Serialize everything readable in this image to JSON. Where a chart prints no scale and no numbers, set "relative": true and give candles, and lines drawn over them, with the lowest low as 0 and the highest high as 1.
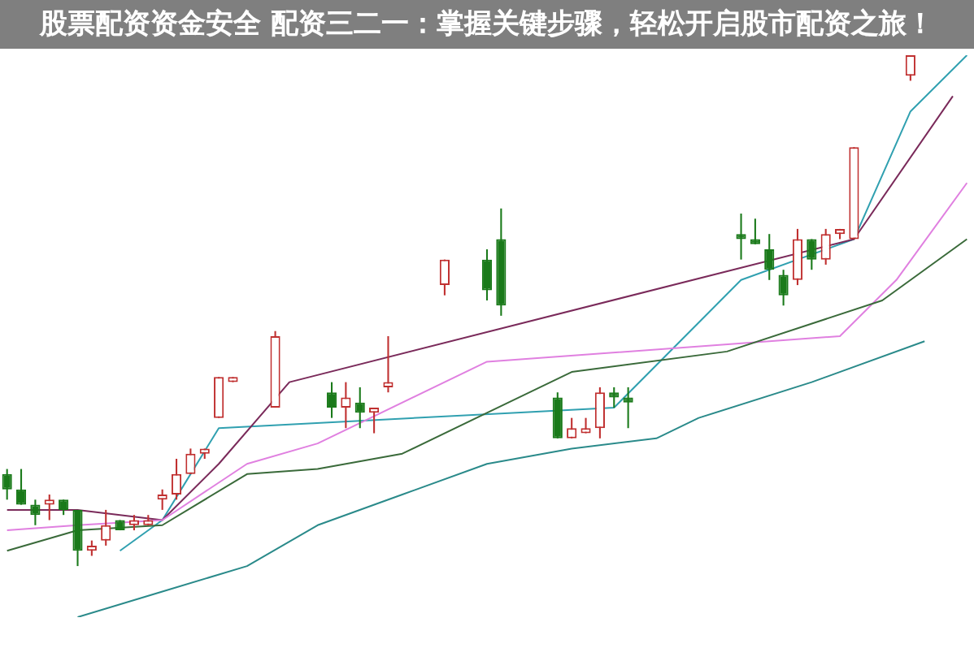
{
  "chart_data": {
    "type": "candlestick",
    "title": "股票配资资金安全 配资三二一：掌握关键步骤，轻松开启股市配资之旅！",
    "relative": true,
    "legend": false,
    "categories": [
      null,
      null,
      null,
      null,
      null,
      null,
      null,
      null,
      null,
      null,
      null,
      null,
      null,
      null,
      null,
      null,
      null,
      null,
      null,
      null,
      null,
      null,
      null,
      null,
      null,
      null,
      null,
      null,
      null,
      null,
      null,
      null,
      null,
      null,
      null,
      null,
      null,
      null,
      null,
      null,
      null,
      null,
      null,
      null,
      null,
      null,
      null,
      null,
      null,
      null,
      null,
      null,
      null,
      null,
      null,
      null,
      null,
      null,
      null,
      null,
      null,
      null,
      null,
      null,
      null,
      null,
      null,
      null,
      null
    ],
    "colors": [
      "#1a7a1a",
      "#1a7a1a",
      "#1a7a1a",
      "#c03030",
      "#1a7a1a",
      "#1a7a1a",
      "#c03030",
      "#c03030",
      "#1a7a1a",
      "#c03030",
      "#c03030",
      "#c03030",
      "#c03030",
      "#c03030",
      "#c03030",
      "#c03030",
      "#c03030",
      null,
      null,
      "#c03030",
      null,
      null,
      null,
      "#1a7a1a",
      "#c03030",
      "#1a7a1a",
      "#c03030",
      "#c03030",
      null,
      null,
      null,
      "#c03030",
      null,
      null,
      "#1a7a1a",
      "#1a7a1a",
      null,
      null,
      null,
      "#1a7a1a",
      "#c03030",
      "#c03030",
      "#c03030",
      "#1a7a1a",
      "#1a7a1a",
      null,
      null,
      null,
      null,
      null,
      null,
      null,
      "#1a7a1a",
      "#1a7a1a",
      "#1a7a1a",
      "#1a7a1a",
      "#c03030",
      "#1a7a1a",
      "#c03030",
      "#c03030",
      "#c03030",
      null,
      null,
      null,
      "#c03030",
      null,
      null,
      null,
      null
    ],
    "ohlc": [
      [
        0.18,
        0.19,
        0.13,
        0.15
      ],
      [
        0.15,
        0.19,
        0.12,
        0.12
      ],
      [
        0.12,
        0.13,
        0.08,
        0.1
      ],
      [
        0.12,
        0.14,
        0.09,
        0.13
      ],
      [
        0.13,
        0.13,
        0.1,
        0.11
      ],
      [
        0.11,
        0.11,
        0,
        0.03
      ],
      [
        0.03,
        0.05,
        0.02,
        0.04
      ],
      [
        0.05,
        0.11,
        0.04,
        0.08
      ],
      [
        0.09,
        0.09,
        0.07,
        0.07
      ],
      [
        0.08,
        0.1,
        0.07,
        0.09
      ],
      [
        0.08,
        0.1,
        0.08,
        0.09
      ],
      [
        0.13,
        0.15,
        0.11,
        0.14
      ],
      [
        0.14,
        0.21,
        0.13,
        0.18
      ],
      [
        0.18,
        0.23,
        0.18,
        0.22
      ],
      [
        0.22,
        0.23,
        0.21,
        0.23
      ],
      [
        0.29,
        0.37,
        0.29,
        0.37
      ],
      [
        0.36,
        0.37,
        0.36,
        0.37
      ],
      null,
      null,
      [
        0.31,
        0.46,
        0.31,
        0.45
      ],
      null,
      null,
      null,
      [
        0.34,
        0.36,
        0.29,
        0.31
      ],
      [
        0.31,
        0.36,
        0.27,
        0.33
      ],
      [
        0.32,
        0.35,
        0.27,
        0.3
      ],
      [
        0.3,
        0.31,
        0.26,
        0.31
      ],
      [
        0.35,
        0.45,
        0.34,
        0.36
      ],
      null,
      null,
      null,
      [
        0.55,
        0.6,
        0.53,
        0.6
      ],
      null,
      null,
      [
        0.6,
        0.62,
        0.52,
        0.54
      ],
      [
        0.64,
        0.7,
        0.49,
        0.51
      ],
      null,
      null,
      null,
      [
        0.33,
        0.34,
        0.25,
        0.25
      ],
      [
        0.25,
        0.29,
        0.25,
        0.27
      ],
      [
        0.26,
        0.29,
        0.26,
        0.27
      ],
      [
        0.27,
        0.35,
        0.25,
        0.34
      ],
      [
        0.34,
        0.35,
        0.31,
        0.33
      ],
      [
        0.33,
        0.35,
        0.27,
        0.32
      ],
      null,
      null,
      null,
      null,
      null,
      null,
      null,
      [
        0.65,
        0.69,
        0.6,
        0.64
      ],
      [
        0.64,
        0.68,
        0.63,
        0.63
      ],
      [
        0.62,
        0.65,
        0.56,
        0.58
      ],
      [
        0.57,
        0.58,
        0.51,
        0.53
      ],
      [
        0.56,
        0.66,
        0.55,
        0.64
      ],
      [
        0.64,
        0.64,
        0.58,
        0.6
      ],
      [
        0.6,
        0.66,
        0.59,
        0.65
      ],
      [
        0.65,
        0.66,
        0.64,
        0.66
      ],
      [
        0.64,
        0.82,
        0.64,
        0.82
      ],
      null,
      null,
      null,
      [
        0.96,
        1,
        0.95,
        1
      ],
      null,
      null,
      null,
      null
    ],
    "series": [
      {
        "type": "line",
        "color": "#2a8a8a",
        "values": [
          null,
          null,
          null,
          null,
          null,
          -0.1,
          null,
          null,
          null,
          null,
          null,
          -0.05,
          null,
          null,
          null,
          null,
          null,
          0,
          null,
          null,
          null,
          null,
          0.08,
          null,
          null,
          null,
          null,
          null,
          0.14,
          null,
          null,
          null,
          null,
          null,
          0.2,
          null,
          null,
          null,
          null,
          null,
          0.23,
          null,
          null,
          null,
          null,
          null,
          0.25,
          null,
          null,
          0.29,
          null,
          null,
          null,
          null,
          null,
          null,
          null,
          0.36,
          null,
          null,
          null,
          null,
          null,
          null,
          null,
          0.44,
          null,
          null,
          null
        ]
      },
      {
        "type": "line",
        "color": "#3a6a3a",
        "values": [
          0.03,
          null,
          null,
          null,
          null,
          0.07,
          null,
          null,
          null,
          null,
          null,
          0.08,
          null,
          null,
          null,
          null,
          null,
          0.18,
          null,
          null,
          null,
          null,
          0.19,
          null,
          null,
          null,
          null,
          null,
          0.22,
          null,
          null,
          null,
          null,
          null,
          0.3,
          null,
          null,
          null,
          null,
          null,
          0.38,
          null,
          null,
          null,
          null,
          null,
          null,
          null,
          null,
          null,
          null,
          0.42,
          null,
          null,
          null,
          null,
          null,
          null,
          null,
          null,
          null,
          null,
          0.52,
          null,
          null,
          null,
          null,
          null,
          0.64
        ]
      },
      {
        "type": "line",
        "color": "#e080e0",
        "values": [
          0.07,
          null,
          null,
          null,
          null,
          0.08,
          null,
          null,
          null,
          null,
          null,
          0.09,
          null,
          null,
          null,
          null,
          null,
          0.2,
          null,
          null,
          null,
          null,
          0.24,
          null,
          null,
          null,
          null,
          null,
          null,
          null,
          null,
          null,
          null,
          null,
          0.4,
          null,
          null,
          null,
          null,
          null,
          null,
          null,
          null,
          null,
          null,
          null,
          null,
          null,
          null,
          null,
          null,
          null,
          null,
          null,
          null,
          null,
          null,
          null,
          null,
          0.45,
          null,
          null,
          null,
          0.56,
          null,
          null,
          null,
          null,
          0.75
        ]
      },
      {
        "type": "line",
        "color": "#7a2a5a",
        "values": [
          0.11,
          null,
          null,
          null,
          null,
          0.11,
          null,
          null,
          null,
          null,
          null,
          0.09,
          null,
          null,
          null,
          0.2,
          null,
          null,
          null,
          null,
          0.36,
          null,
          null,
          null,
          null,
          null,
          null,
          null,
          null,
          null,
          null,
          null,
          null,
          null,
          null,
          null,
          null,
          null,
          null,
          null,
          null,
          null,
          null,
          null,
          null,
          null,
          null,
          null,
          null,
          null,
          null,
          null,
          null,
          null,
          null,
          null,
          null,
          null,
          null,
          null,
          0.64,
          null,
          null,
          null,
          null,
          null,
          null,
          0.92,
          null
        ]
      },
      {
        "type": "line",
        "color": "#30a0b0",
        "values": [
          null,
          null,
          null,
          null,
          null,
          null,
          null,
          null,
          0.03,
          null,
          null,
          0.09,
          null,
          0.18,
          null,
          0.27,
          null,
          null,
          null,
          null,
          null,
          null,
          null,
          null,
          null,
          null,
          null,
          null,
          null,
          null,
          null,
          null,
          null,
          null,
          null,
          null,
          null,
          null,
          null,
          null,
          null,
          null,
          null,
          0.31,
          null,
          null,
          null,
          null,
          null,
          null,
          null,
          null,
          0.56,
          null,
          null,
          null,
          null,
          null,
          null,
          null,
          0.64,
          null,
          null,
          null,
          0.89,
          null,
          null,
          null,
          1
        ]
      }
    ]
  }
}
